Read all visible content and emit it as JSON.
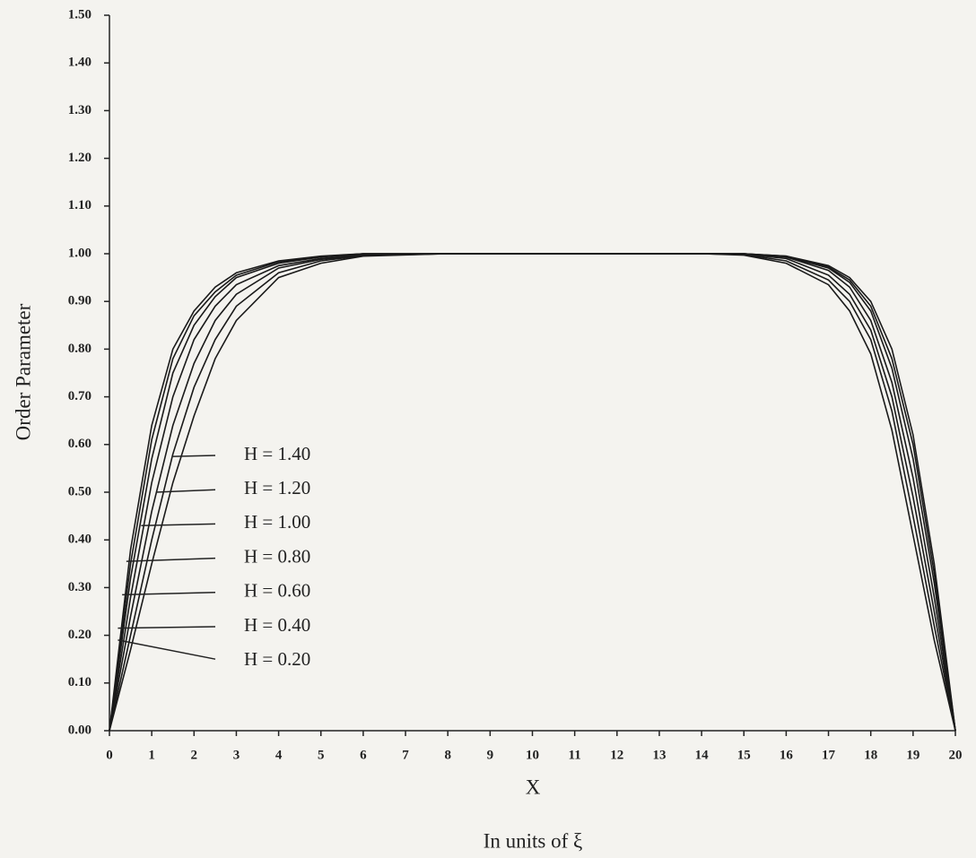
{
  "chart_data": {
    "type": "line",
    "y_label": "Order Parameter",
    "x_label": "X",
    "x_note": "In units of ξ",
    "x": [
      0,
      0.5,
      1,
      1.5,
      2,
      2.5,
      3,
      4,
      5,
      6,
      8,
      10,
      12,
      14,
      15,
      16,
      17,
      17.5,
      18,
      18.5,
      19,
      19.5,
      20
    ],
    "series": [
      {
        "name": "H = 0.20",
        "color": "#1a1a1a",
        "values": [
          0,
          0.38,
          0.64,
          0.8,
          0.88,
          0.93,
          0.96,
          0.985,
          0.995,
          1.0,
          1.0,
          1.0,
          1.0,
          1.0,
          1.0,
          0.995,
          0.975,
          0.95,
          0.9,
          0.8,
          0.62,
          0.35,
          0
        ]
      },
      {
        "name": "H = 0.40",
        "color": "#1a1a1a",
        "values": [
          0,
          0.35,
          0.61,
          0.78,
          0.87,
          0.92,
          0.955,
          0.983,
          0.994,
          1.0,
          1.0,
          1.0,
          1.0,
          1.0,
          1.0,
          0.995,
          0.972,
          0.945,
          0.89,
          0.78,
          0.6,
          0.33,
          0
        ]
      },
      {
        "name": "H = 0.60",
        "color": "#1a1a1a",
        "values": [
          0,
          0.32,
          0.57,
          0.75,
          0.85,
          0.91,
          0.95,
          0.98,
          0.993,
          1.0,
          1.0,
          1.0,
          1.0,
          1.0,
          1.0,
          0.994,
          0.97,
          0.94,
          0.88,
          0.76,
          0.57,
          0.31,
          0
        ]
      },
      {
        "name": "H = 0.80",
        "color": "#1a1a1a",
        "values": [
          0,
          0.28,
          0.52,
          0.7,
          0.82,
          0.89,
          0.935,
          0.975,
          0.99,
          0.998,
          1.0,
          1.0,
          1.0,
          1.0,
          1.0,
          0.993,
          0.965,
          0.93,
          0.86,
          0.73,
          0.53,
          0.28,
          0
        ]
      },
      {
        "name": "H = 1.00",
        "color": "#1a1a1a",
        "values": [
          0,
          0.24,
          0.46,
          0.64,
          0.77,
          0.86,
          0.915,
          0.97,
          0.988,
          0.997,
          1.0,
          1.0,
          1.0,
          1.0,
          0.999,
          0.99,
          0.955,
          0.915,
          0.84,
          0.7,
          0.49,
          0.25,
          0
        ]
      },
      {
        "name": "H = 1.20",
        "color": "#1a1a1a",
        "values": [
          0,
          0.2,
          0.4,
          0.58,
          0.72,
          0.82,
          0.89,
          0.96,
          0.985,
          0.996,
          1.0,
          1.0,
          1.0,
          1.0,
          0.998,
          0.985,
          0.945,
          0.9,
          0.82,
          0.67,
          0.45,
          0.22,
          0
        ]
      },
      {
        "name": "H = 1.40",
        "color": "#1a1a1a",
        "values": [
          0,
          0.17,
          0.35,
          0.52,
          0.66,
          0.78,
          0.86,
          0.95,
          0.98,
          0.995,
          1.0,
          1.0,
          1.0,
          1.0,
          0.997,
          0.98,
          0.935,
          0.88,
          0.79,
          0.63,
          0.41,
          0.19,
          0
        ]
      }
    ],
    "annotations": [
      {
        "text": "H = 1.40",
        "xy": [
          1.5,
          0.575
        ]
      },
      {
        "text": "H = 1.20",
        "xy": [
          1.1,
          0.5
        ]
      },
      {
        "text": "H = 1.00",
        "xy": [
          0.75,
          0.43
        ]
      },
      {
        "text": "H = 0.80",
        "xy": [
          0.4,
          0.355
        ]
      },
      {
        "text": "H = 0.60",
        "xy": [
          0.3,
          0.285
        ]
      },
      {
        "text": "H = 0.40",
        "xy": [
          0.2,
          0.215
        ]
      },
      {
        "text": "H = 0.20",
        "xy": [
          0.2,
          0.19
        ]
      }
    ],
    "xlim": [
      0,
      20
    ],
    "xticks": [
      0,
      1,
      2,
      3,
      4,
      5,
      6,
      7,
      8,
      9,
      10,
      11,
      12,
      13,
      14,
      15,
      16,
      17,
      18,
      19,
      20
    ],
    "ylim": [
      0,
      1.5
    ],
    "yticks": [
      {
        "value": 0,
        "label": "0.00"
      },
      {
        "value": 0.1,
        "label": "0.10"
      },
      {
        "value": 0.2,
        "label": "0.20"
      },
      {
        "value": 0.3,
        "label": "0.30"
      },
      {
        "value": 0.4,
        "label": "0.40"
      },
      {
        "value": 0.5,
        "label": "0.50"
      },
      {
        "value": 0.6,
        "label": "0.60"
      },
      {
        "value": 0.7,
        "label": "0.70"
      },
      {
        "value": 0.8,
        "label": "0.80"
      },
      {
        "value": 0.9,
        "label": "0.90"
      },
      {
        "value": 1.0,
        "label": "1.00"
      },
      {
        "value": 1.1,
        "label": "1.10"
      },
      {
        "value": 1.2,
        "label": "1.20"
      },
      {
        "value": 1.3,
        "label": "1.30"
      },
      {
        "value": 1.4,
        "label": "1.40"
      },
      {
        "value": 1.5,
        "label": "1.50"
      }
    ],
    "grid": false
  }
}
